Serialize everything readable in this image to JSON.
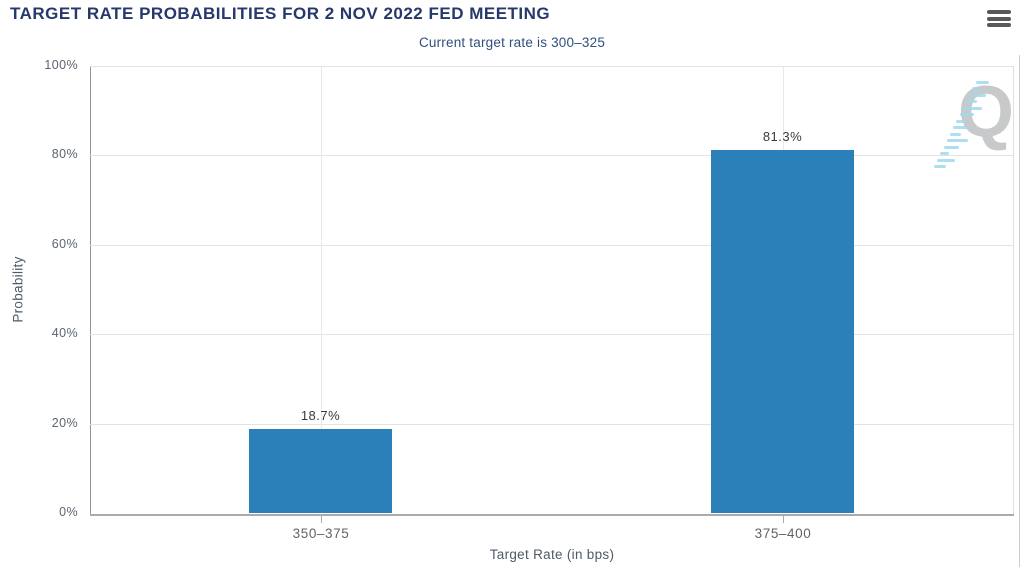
{
  "header": {
    "title": "TARGET RATE PROBABILITIES FOR 2 NOV 2022 FED MEETING",
    "subtitle": "Current target rate is 300–325"
  },
  "colors": {
    "bar": "#2b80ba",
    "grid": "#e3e3e3",
    "vgrid": "#e8e8e8",
    "axis": "#ababab",
    "tick": "#a9a9a9"
  },
  "watermark": {
    "letter": "Q"
  },
  "chart_data": {
    "type": "bar",
    "title": "TARGET RATE PROBABILITIES FOR 2 NOV 2022 FED MEETING",
    "subtitle": "Current target rate is 300–325",
    "categories": [
      "350–375",
      "375–400"
    ],
    "values": [
      18.7,
      81.3
    ],
    "value_labels": [
      "18.7%",
      "81.3%"
    ],
    "xlabel": "Target Rate (in bps)",
    "ylabel": "Probability",
    "ylim": [
      0,
      100
    ],
    "yticks": [
      0,
      20,
      40,
      60,
      80,
      100
    ],
    "ytick_labels": [
      "0%",
      "20%",
      "40%",
      "60%",
      "80%",
      "100%"
    ],
    "grid": true,
    "legend": false
  }
}
